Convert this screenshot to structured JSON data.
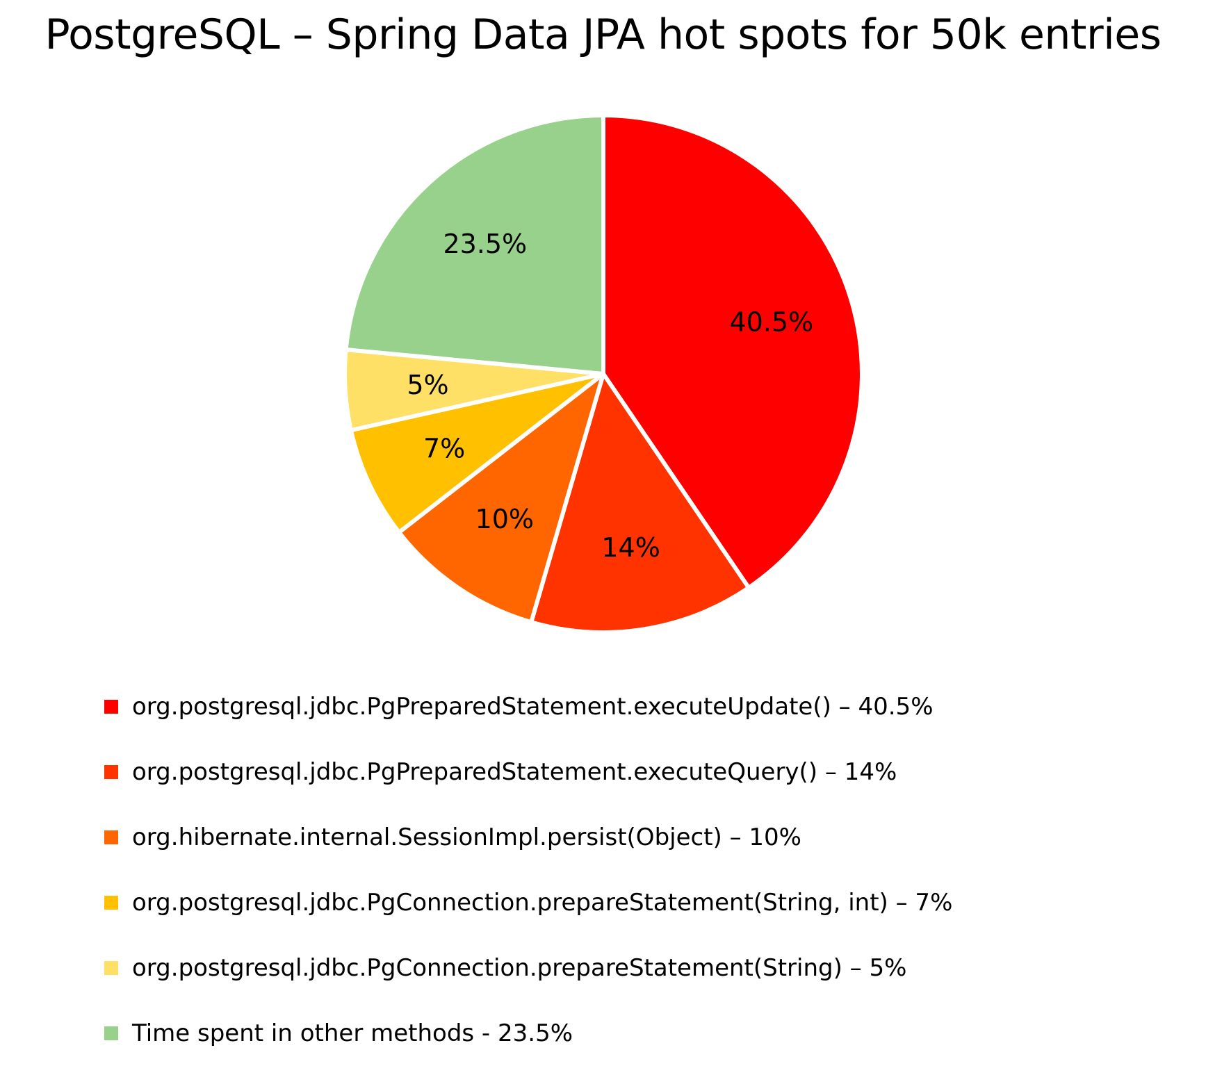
{
  "chart_data": {
    "type": "pie",
    "title": "PostgreSQL – Spring Data JPA hot spots for 50k entries",
    "start": "12 o'clock, clockwise",
    "legend_position": "bottom",
    "slices": [
      {
        "value": 40.5,
        "data_label": "40.5%",
        "legend": "org.postgresql.jdbc.PgPreparedStatement.executeUpdate() – 40.5%",
        "color": "#ff0000"
      },
      {
        "value": 14,
        "data_label": "14%",
        "legend": "org.postgresql.jdbc.PgPreparedStatement.executeQuery() – 14%",
        "color": "#ff3300"
      },
      {
        "value": 10,
        "data_label": "10%",
        "legend": "org.hibernate.internal.SessionImpl.persist(Object) – 10%",
        "color": "#ff6600"
      },
      {
        "value": 7,
        "data_label": "7%",
        "legend": "org.postgresql.jdbc.PgConnection.prepareStatement(String, int) – 7%",
        "color": "#ffc000"
      },
      {
        "value": 5,
        "data_label": "5%",
        "legend": "org.postgresql.jdbc.PgConnection.prepareStatement(String) – 5%",
        "color": "#ffe066"
      },
      {
        "value": 23.5,
        "data_label": "23.5%",
        "legend": "Time spent in other methods - 23.5%",
        "color": "#97d18c"
      }
    ]
  }
}
